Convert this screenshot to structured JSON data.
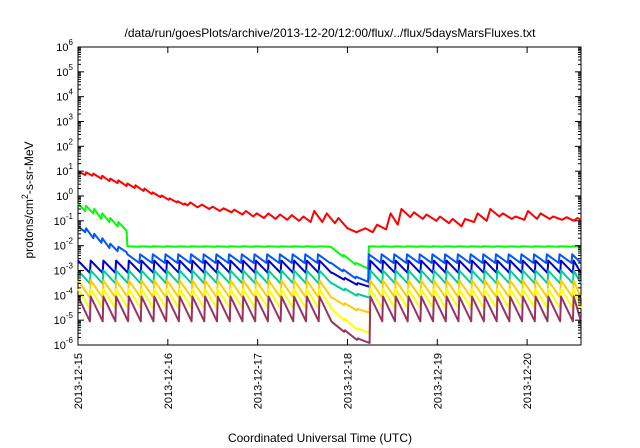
{
  "chart_data": {
    "type": "line",
    "title": "/data/run/goesPlots/archive/2013-12-20/12:00/flux/../flux/5daysMarsFluxes.txt",
    "xlabel": "Coordinated Universal Time (UTC)",
    "ylabel": "protons/cm2-s-sr-MeV",
    "ylabel_parts": {
      "pre": "protons/cm",
      "sup": "2",
      "post": "-s-sr-MeV"
    },
    "yscale": "log",
    "ylim_exponents": [
      -6,
      6
    ],
    "y_tick_base": "10",
    "y_ticks": [
      -6,
      -5,
      -4,
      -3,
      -2,
      -1,
      0,
      1,
      2,
      3,
      4,
      5,
      6
    ],
    "xlim_days": [
      0,
      5.6
    ],
    "x_ticks": [
      {
        "day": 0,
        "label": "2013-12-15"
      },
      {
        "day": 1,
        "label": "2013-12-16"
      },
      {
        "day": 2,
        "label": "2013-12-17"
      },
      {
        "day": 3,
        "label": "2013-12-18"
      },
      {
        "day": 4,
        "label": "2013-12-19"
      },
      {
        "day": 5,
        "label": "2013-12-20"
      }
    ],
    "grid": false,
    "legend": "none",
    "series": [
      {
        "color": "#ff0000",
        "points": [
          [
            0.0,
            10
          ],
          [
            0.08,
            7
          ],
          [
            0.09,
            9
          ],
          [
            0.16,
            6.5
          ],
          [
            0.17,
            8
          ],
          [
            0.26,
            5
          ],
          [
            0.27,
            6.5
          ],
          [
            0.35,
            4
          ],
          [
            0.36,
            5
          ],
          [
            0.44,
            3.3
          ],
          [
            0.45,
            4.3
          ],
          [
            0.54,
            2.5
          ],
          [
            0.55,
            3.2
          ],
          [
            0.63,
            2.1
          ],
          [
            0.64,
            2.7
          ],
          [
            0.73,
            1.6
          ],
          [
            0.74,
            2.0
          ],
          [
            0.82,
            1.2
          ],
          [
            0.83,
            1.4
          ],
          [
            0.92,
            0.9
          ],
          [
            0.93,
            1.05
          ],
          [
            1.01,
            0.7
          ],
          [
            1.02,
            0.8
          ],
          [
            1.1,
            0.55
          ],
          [
            1.11,
            0.62
          ],
          [
            1.18,
            0.45
          ],
          [
            1.19,
            0.5
          ],
          [
            1.22,
            0.42
          ],
          [
            1.25,
            0.55
          ],
          [
            1.33,
            0.35
          ],
          [
            1.38,
            0.45
          ],
          [
            1.46,
            0.3
          ],
          [
            1.5,
            0.37
          ],
          [
            1.58,
            0.25
          ],
          [
            1.62,
            0.32
          ],
          [
            1.71,
            0.22
          ],
          [
            1.74,
            0.28
          ],
          [
            1.83,
            0.18
          ],
          [
            1.87,
            0.25
          ],
          [
            1.95,
            0.15
          ],
          [
            1.99,
            0.2
          ],
          [
            2.07,
            0.13
          ],
          [
            2.12,
            0.2
          ],
          [
            2.2,
            0.12
          ],
          [
            2.25,
            0.18
          ],
          [
            2.33,
            0.11
          ],
          [
            2.38,
            0.17
          ],
          [
            2.46,
            0.1
          ],
          [
            2.51,
            0.15
          ],
          [
            2.59,
            0.09
          ],
          [
            2.63,
            0.25
          ],
          [
            2.72,
            0.09
          ],
          [
            2.77,
            0.2
          ],
          [
            2.86,
            0.08
          ],
          [
            2.9,
            0.13
          ],
          [
            3.0,
            0.05
          ],
          [
            3.1,
            0.035
          ],
          [
            3.2,
            0.05
          ],
          [
            3.28,
            0.035
          ],
          [
            3.33,
            0.07
          ],
          [
            3.43,
            0.045
          ],
          [
            3.48,
            0.2
          ],
          [
            3.56,
            0.07
          ],
          [
            3.6,
            0.3
          ],
          [
            3.7,
            0.14
          ],
          [
            3.74,
            0.22
          ],
          [
            3.84,
            0.12
          ],
          [
            3.88,
            0.18
          ],
          [
            3.99,
            0.1
          ],
          [
            4.03,
            0.15
          ],
          [
            4.13,
            0.08
          ],
          [
            4.17,
            0.12
          ],
          [
            4.27,
            0.06
          ],
          [
            4.31,
            0.12
          ],
          [
            4.41,
            0.09
          ],
          [
            4.45,
            0.2
          ],
          [
            4.55,
            0.1
          ],
          [
            4.59,
            0.3
          ],
          [
            4.69,
            0.15
          ],
          [
            4.73,
            0.2
          ],
          [
            4.83,
            0.12
          ],
          [
            4.87,
            0.15
          ],
          [
            4.97,
            0.11
          ],
          [
            5.01,
            0.25
          ],
          [
            5.11,
            0.12
          ],
          [
            5.15,
            0.2
          ],
          [
            5.25,
            0.12
          ],
          [
            5.29,
            0.15
          ],
          [
            5.39,
            0.11
          ],
          [
            5.44,
            0.14
          ],
          [
            5.52,
            0.1
          ],
          [
            5.56,
            0.13
          ],
          [
            5.6,
            0.11
          ]
        ]
      },
      {
        "color": "#00ff00",
        "base": 0.0095,
        "period": 0.1415,
        "decay": 3.2,
        "start": 0.55,
        "low": 0.009,
        "dip_bottom": 0.0012,
        "pre": [
          [
            0.0,
            0.5
          ],
          [
            0.08,
            0.25
          ],
          [
            0.09,
            0.4
          ],
          [
            0.17,
            0.2
          ],
          [
            0.18,
            0.3
          ],
          [
            0.26,
            0.12
          ],
          [
            0.27,
            0.2
          ],
          [
            0.35,
            0.09
          ],
          [
            0.36,
            0.13
          ],
          [
            0.44,
            0.06
          ],
          [
            0.45,
            0.09
          ],
          [
            0.54,
            0.04
          ]
        ]
      },
      {
        "color": "#0055ff",
        "base": 0.0045,
        "period": 0.1415,
        "decay": 4.0,
        "start": 0.55,
        "low": 0.002,
        "dip_bottom": 0.00035,
        "pre": [
          [
            0.0,
            0.06
          ],
          [
            0.08,
            0.035
          ],
          [
            0.09,
            0.05
          ],
          [
            0.17,
            0.02
          ],
          [
            0.18,
            0.03
          ],
          [
            0.26,
            0.013
          ],
          [
            0.27,
            0.02
          ],
          [
            0.35,
            0.008
          ],
          [
            0.36,
            0.012
          ],
          [
            0.44,
            0.006
          ],
          [
            0.45,
            0.009
          ],
          [
            0.54,
            0.0055
          ]
        ]
      },
      {
        "color": "#0000cc",
        "base": 0.0025,
        "period": 0.1415,
        "decay": 4.5,
        "start": 0.0,
        "low": 0.0008,
        "dip_bottom": 0.00022
      },
      {
        "color": "#00cc99",
        "base": 0.001,
        "period": 0.1415,
        "decay": 5.0,
        "start": 0.0,
        "low": 0.0003,
        "dip_bottom": 8e-05
      },
      {
        "color": "#ffcc00",
        "base": 0.0004,
        "period": 0.1415,
        "decay": 6.0,
        "start": 0.0,
        "low": 8e-05,
        "dip_bottom": 2e-05
      },
      {
        "color": "#ffff00",
        "base": 0.00018,
        "period": 0.1415,
        "decay": 6.5,
        "start": 0.0,
        "low": 3e-05,
        "dip_bottom": 3e-06
      },
      {
        "color": "#993366",
        "base": 9e-05,
        "period": 0.1415,
        "decay": 7.5,
        "start": 0.0,
        "low": 9e-06,
        "dip_bottom": 1.2e-06
      }
    ],
    "dip": {
      "start": 2.78,
      "end": 3.16,
      "recover": 3.2
    }
  }
}
